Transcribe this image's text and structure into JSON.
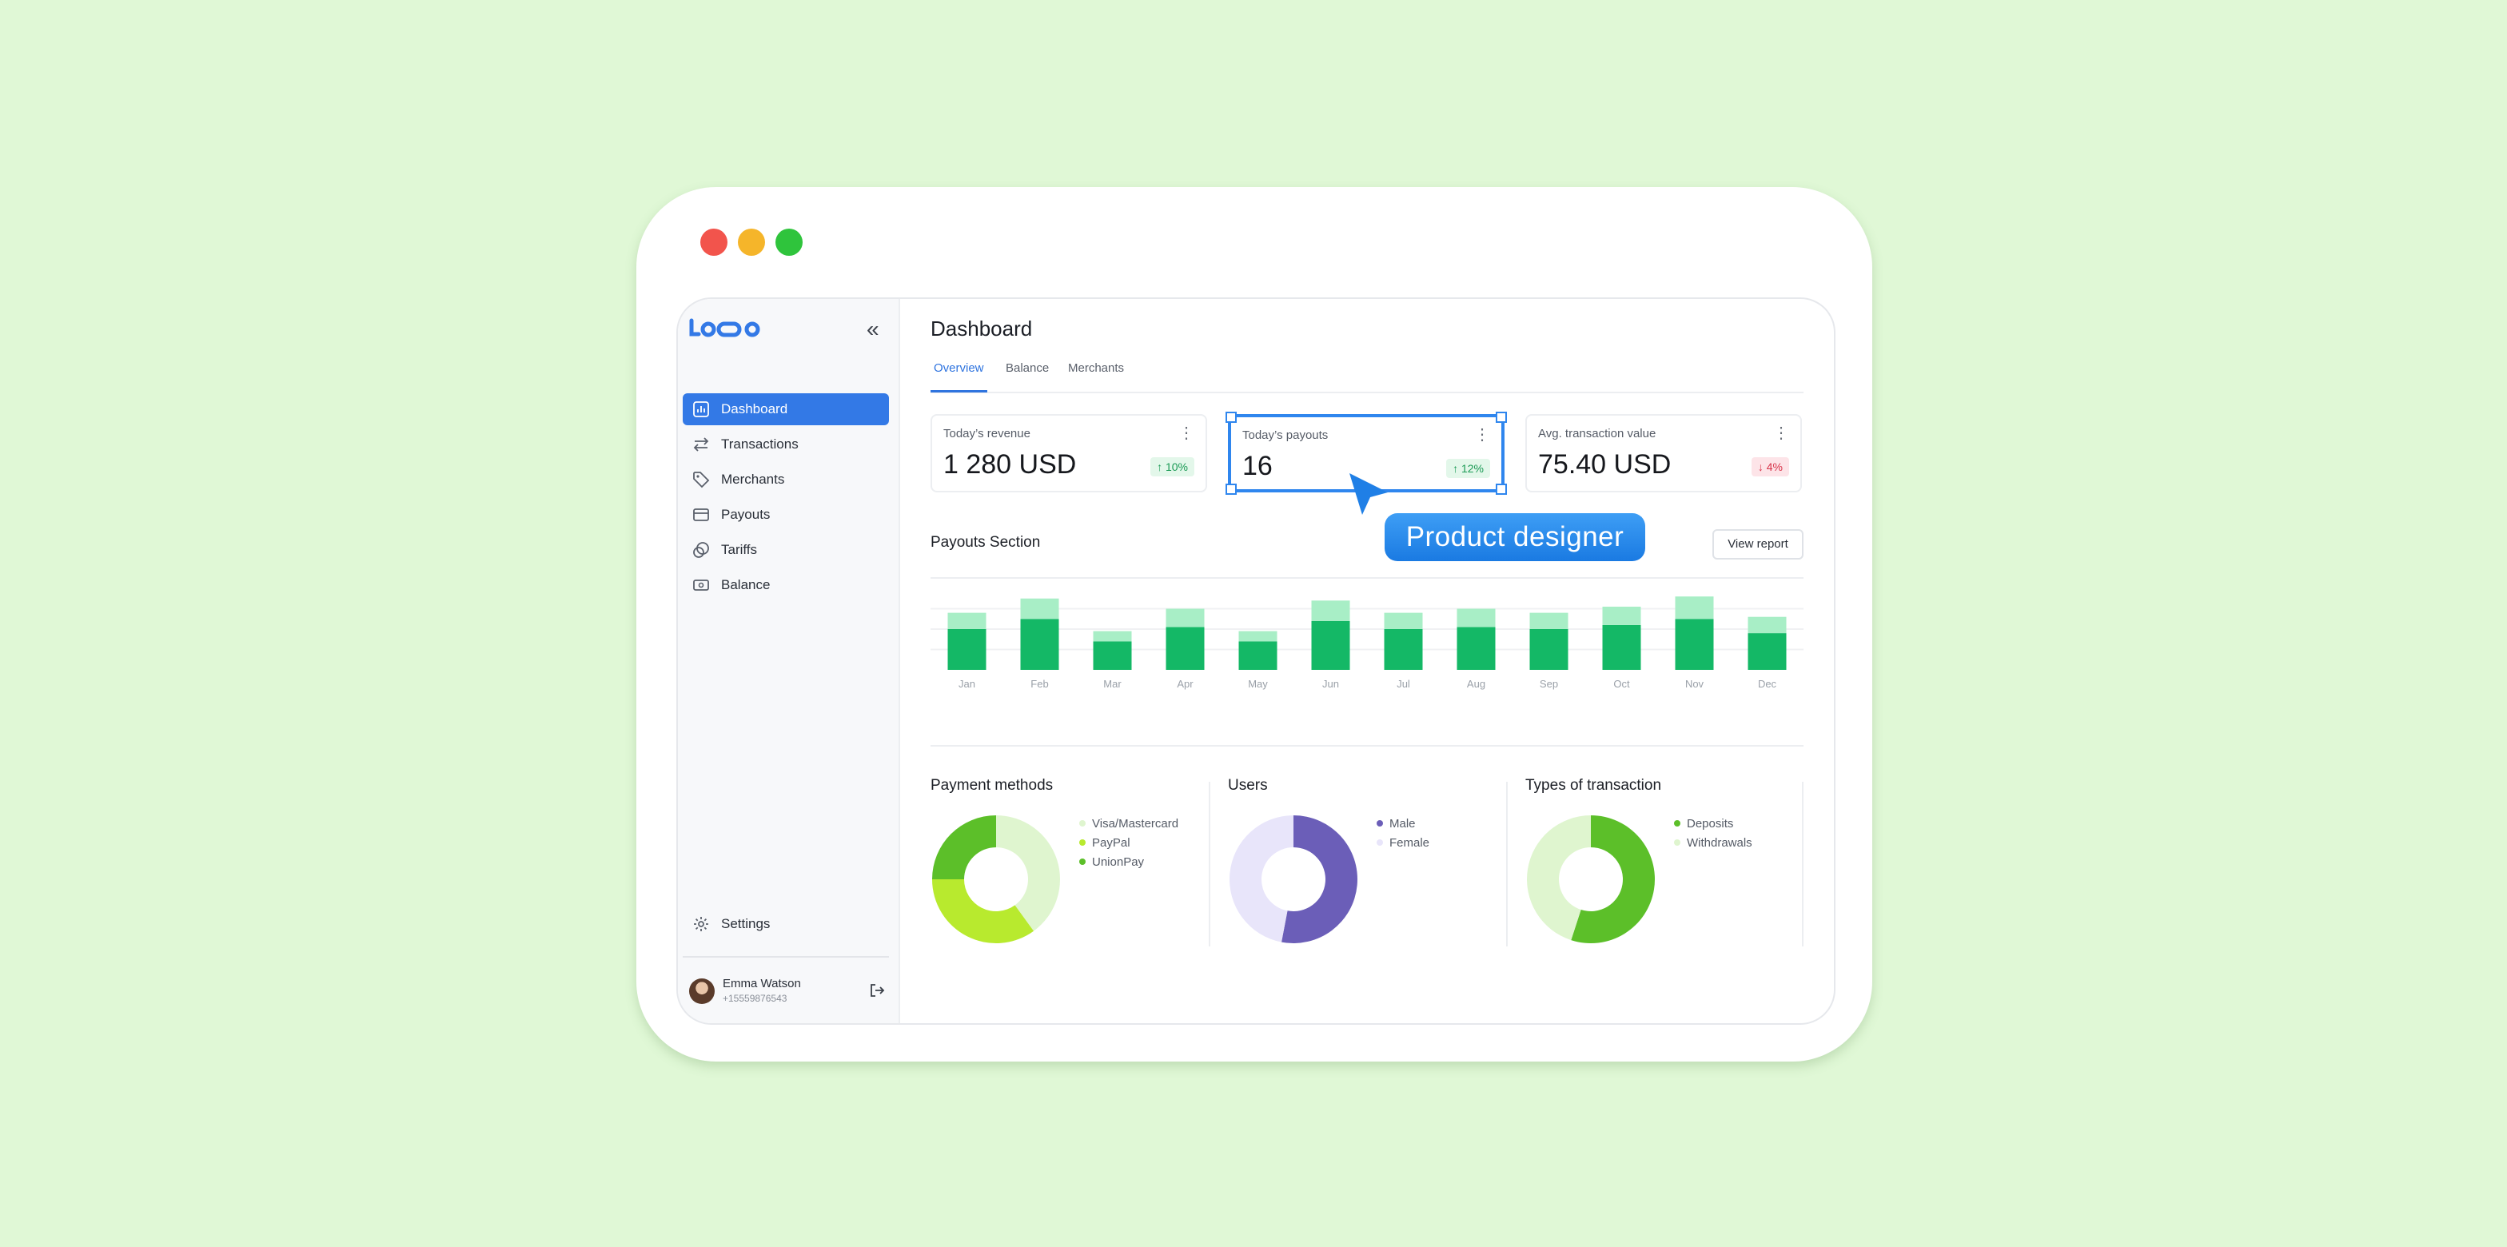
{
  "window": {
    "traffic_lights": [
      "close",
      "minimize",
      "maximize"
    ]
  },
  "brand": {
    "logo_text": "LOQO",
    "color": "#3379e6"
  },
  "sidebar": {
    "collapse_icon": "double-chevron-left-icon",
    "items": [
      {
        "label": "Dashboard",
        "icon": "bar-chart-icon",
        "active": true
      },
      {
        "label": "Transactions",
        "icon": "arrows-swap-icon"
      },
      {
        "label": "Merchants",
        "icon": "tag-icon"
      },
      {
        "label": "Payouts",
        "icon": "card-icon"
      },
      {
        "label": "Tariffs",
        "icon": "coins-icon"
      },
      {
        "label": "Balance",
        "icon": "wallet-icon"
      }
    ],
    "settings_label": "Settings",
    "user": {
      "name": "Emma Watson",
      "phone": "+15559876543"
    }
  },
  "header": {
    "title": "Dashboard",
    "tabs": [
      {
        "label": "Overview",
        "active": true
      },
      {
        "label": "Balance"
      },
      {
        "label": "Merchants"
      }
    ]
  },
  "cards": [
    {
      "label": "Today’s revenue",
      "value": "1 280 USD",
      "change": "10%",
      "direction": "up"
    },
    {
      "label": "Today’s payouts",
      "value": "16",
      "change": "12%",
      "direction": "up",
      "selected": true
    },
    {
      "label": "Avg. transaction value",
      "value": "75.40 USD",
      "change": "4%",
      "direction": "down"
    }
  ],
  "annotation": {
    "label": "Product designer"
  },
  "payouts": {
    "title": "Payouts Section",
    "button_label": "View report"
  },
  "chart_data": {
    "type": "bar",
    "stacked": true,
    "categories": [
      "Jan",
      "Feb",
      "Mar",
      "Apr",
      "May",
      "Jun",
      "Jul",
      "Aug",
      "Sep",
      "Oct",
      "Nov",
      "Dec"
    ],
    "series": [
      {
        "values": [
          20,
          25,
          14,
          21,
          14,
          24,
          20,
          21,
          20,
          22,
          25,
          18
        ],
        "color": "#14b866"
      },
      {
        "values": [
          8,
          10,
          5,
          9,
          5,
          10,
          8,
          9,
          8,
          9,
          11,
          8
        ],
        "color": "#a8eec6"
      }
    ],
    "ylim": [
      0,
      40
    ],
    "grid": true
  },
  "donuts": [
    {
      "title": "Payment methods",
      "legend": [
        {
          "label": "Visa/Mastercard",
          "color": "#dff5cf"
        },
        {
          "label": "PayPal",
          "color": "#b8ea2e"
        },
        {
          "label": "UnionPay",
          "color": "#5cbf29"
        }
      ],
      "chart_data": {
        "type": "pie",
        "labels": [
          "Visa/Mastercard",
          "PayPal",
          "UnionPay"
        ],
        "values": [
          40,
          35,
          25
        ]
      }
    },
    {
      "title": "Users",
      "legend": [
        {
          "label": "Male",
          "color": "#6b5eb8"
        },
        {
          "label": "Female",
          "color": "#e8e5fa"
        }
      ],
      "chart_data": {
        "type": "pie",
        "labels": [
          "Male",
          "Female"
        ],
        "values": [
          53,
          47
        ]
      }
    },
    {
      "title": "Types of transaction",
      "legend": [
        {
          "label": "Deposits",
          "color": "#5cbf29"
        },
        {
          "label": "Withdrawals",
          "color": "#dff5cf"
        }
      ],
      "chart_data": {
        "type": "pie",
        "labels": [
          "Deposits",
          "Withdrawals"
        ],
        "values": [
          55,
          45
        ]
      }
    }
  ]
}
